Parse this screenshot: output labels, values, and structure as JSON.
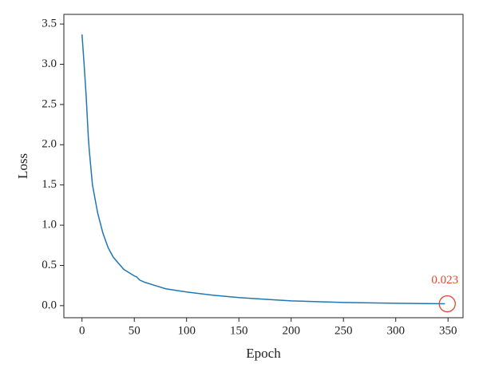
{
  "chart_data": {
    "type": "line",
    "x_label": "Epoch",
    "y_label": "Loss",
    "x": [
      0,
      2,
      4,
      6,
      7,
      10,
      15,
      20,
      25,
      30,
      40,
      50,
      52,
      55,
      60,
      70,
      80,
      100,
      125,
      150,
      175,
      200,
      250,
      300,
      347
    ],
    "series": [
      {
        "name": "Loss",
        "color": "#1f77b4",
        "values": [
          3.37,
          3.0,
          2.6,
          2.1,
          1.92,
          1.5,
          1.15,
          0.9,
          0.72,
          0.6,
          0.45,
          0.37,
          0.36,
          0.32,
          0.29,
          0.25,
          0.21,
          0.17,
          0.13,
          0.1,
          0.08,
          0.06,
          0.04,
          0.03,
          0.023
        ]
      }
    ],
    "annotation": {
      "text": "0.023",
      "color": "#e8462a"
    },
    "xlim": [
      -17.35,
      364.35
    ],
    "ylim": [
      -0.15,
      3.62
    ],
    "xticks": [
      0,
      50,
      100,
      150,
      200,
      250,
      300,
      350
    ],
    "yticks": [
      {
        "value": 0,
        "label": "0.0"
      },
      0.5,
      {
        "value": 1,
        "label": "1.0"
      },
      1.5,
      {
        "value": 2,
        "label": "2.0"
      },
      2.5,
      {
        "value": 3,
        "label": "3.0"
      },
      3.5
    ],
    "grid": false
  }
}
